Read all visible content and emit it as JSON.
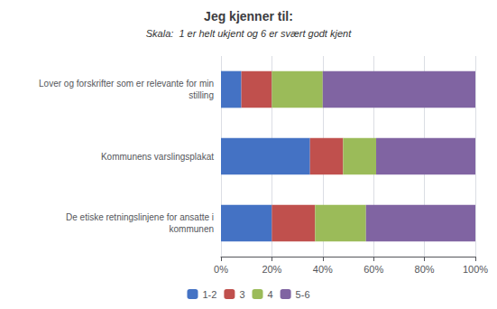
{
  "chart_data": {
    "type": "bar",
    "orientation": "horizontal",
    "stacked": true,
    "title": "Jeg kjenner til:",
    "subtitle": "Skala:  1 er helt ukjent og 6 er svært godt kjent",
    "categories": [
      "De etiske retningslinjene for ansatte i\nkommunen",
      "Kommunens varslingsplakat",
      "Lover og forskrifter som er relevante for min\nstilling"
    ],
    "series": [
      {
        "name": "1-2",
        "color": "#4472C4",
        "values": [
          20,
          35,
          8
        ]
      },
      {
        "name": "3",
        "color": "#C0504D",
        "values": [
          17,
          13,
          12
        ]
      },
      {
        "name": "4",
        "color": "#9BBB59",
        "values": [
          20,
          13,
          20
        ]
      },
      {
        "name": "5-6",
        "color": "#8064A2",
        "values": [
          43,
          39,
          60
        ]
      }
    ],
    "xlim": [
      0,
      100
    ],
    "xticks": [
      {
        "value": 0,
        "label": "0%"
      },
      {
        "value": 20,
        "label": "20%"
      },
      {
        "value": 40,
        "label": "40%"
      },
      {
        "value": 60,
        "label": "60%"
      },
      {
        "value": 80,
        "label": "80%"
      },
      {
        "value": 100,
        "label": "100%"
      }
    ],
    "grid": true,
    "legend": "bottom"
  }
}
